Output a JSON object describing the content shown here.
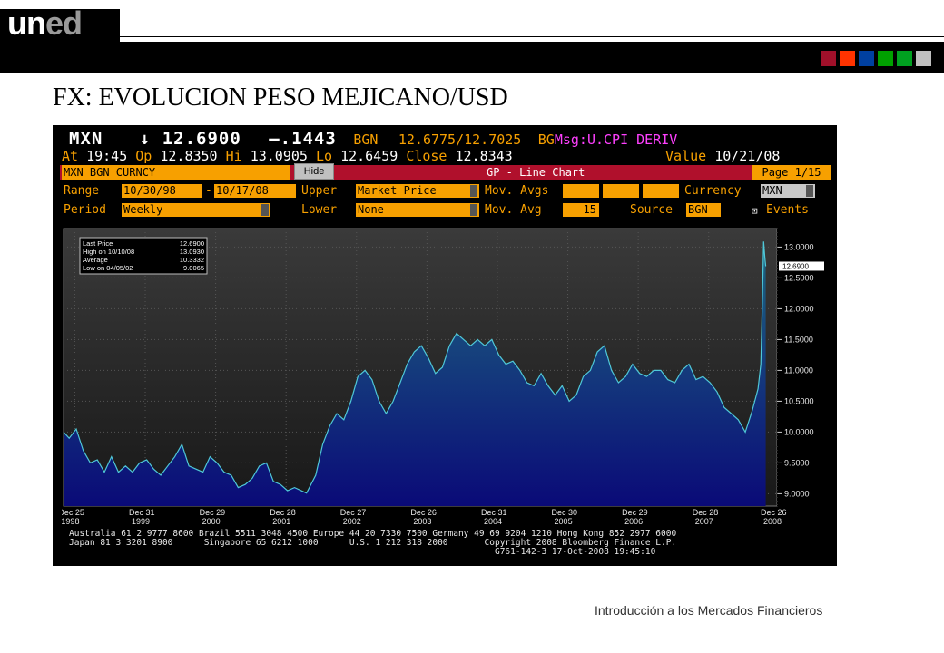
{
  "logo": {
    "part1": "un",
    "part2": "ed"
  },
  "header_squares": [
    "#a0102a",
    "#ff3300",
    "#0040a0",
    "#00a000",
    "#00a020",
    "#c0c0c0"
  ],
  "slide_title": "FX: EVOLUCION PESO MEJICANO/USD",
  "footer_text": "Introducción a los Mercados Financieros",
  "terminal": {
    "ticker": "MXN",
    "arrow": "↓",
    "last": "12.6900",
    "change": "–.1443",
    "source_tag": "BGN",
    "bid_ask": "12.6775/12.7025",
    "source_tag2": "BG",
    "msg": "Msg:U.CPI DERIV",
    "at_label": "At",
    "at_time": "19:45",
    "op_label": "Op",
    "open": "12.8350",
    "hi_label": "Hi",
    "high": "13.0905",
    "lo_label": "Lo",
    "low": "12.6459",
    "close_label": "Close",
    "close": "12.8343",
    "value_label": "Value",
    "value_date": "10/21/08",
    "security": "MXN BGN CURNCY",
    "hide_label": "Hide",
    "chart_title": "GP - Line Chart",
    "page": "Page 1/15",
    "range_label": "Range",
    "range_start": "10/30/98",
    "range_dash": "-",
    "range_end": "10/17/08",
    "upper_label": "Upper",
    "upper_value": "Market Price",
    "movavgs_label": "Mov. Avgs",
    "currency_label": "Currency",
    "currency_value": "MXN",
    "period_label": "Period",
    "period_value": "Weekly",
    "lower_label": "Lower",
    "lower_value": "None",
    "movavg_label": "Mov. Avg",
    "movavg_value": "15",
    "source_label": "Source",
    "source_value": "BGN",
    "events_label": "Events",
    "footer_line1": "Australia 61 2 9777 8600 Brazil 5511 3048 4500 Europe 44 20 7330 7500 Germany 49 69 9204 1210 Hong Kong 852 2977 6000",
    "footer_line2": "Japan 81 3 3201 8900      Singapore 65 6212 1000      U.S. 1 212 318 2000       Copyright 2008 Bloomberg Finance L.P.",
    "footer_line3": "                                                                                  G761-142-3 17-Oct-2008 19:45:10"
  },
  "chart_data": {
    "type": "area",
    "title": "",
    "xlabel": "",
    "ylabel": "",
    "ylim": [
      8.8,
      13.3
    ],
    "yticks": [
      "9.0000",
      "9.5000",
      "10.0000",
      "10.5000",
      "11.0000",
      "11.5000",
      "12.0000",
      "12.5000",
      "13.0000"
    ],
    "last_price_tag": "12.6900",
    "xticks": [
      {
        "top": "Dec 25",
        "bottom": "1998"
      },
      {
        "top": "Dec 31",
        "bottom": "1999"
      },
      {
        "top": "Dec 29",
        "bottom": "2000"
      },
      {
        "top": "Dec 28",
        "bottom": "2001"
      },
      {
        "top": "Dec 27",
        "bottom": "2002"
      },
      {
        "top": "Dec 26",
        "bottom": "2003"
      },
      {
        "top": "Dec 31",
        "bottom": "2004"
      },
      {
        "top": "Dec 30",
        "bottom": "2005"
      },
      {
        "top": "Dec 29",
        "bottom": "2006"
      },
      {
        "top": "Dec 28",
        "bottom": "2007"
      },
      {
        "top": "Dec 26",
        "bottom": "2008"
      }
    ],
    "legend": [
      {
        "label": "Last Price",
        "value": "12.6900"
      },
      {
        "label": "High on 10/10/08",
        "value": "13.0930"
      },
      {
        "label": "Average",
        "value": "10.3332"
      },
      {
        "label": "Low on 04/05/02",
        "value": "9.0065"
      }
    ],
    "legend_position": "top-left",
    "series": [
      {
        "x": [
          1998.82,
          1998.9,
          1999.0,
          1999.1,
          1999.2,
          1999.3,
          1999.4,
          1999.5,
          1999.6,
          1999.7,
          1999.8,
          1999.9,
          2000.0,
          2000.1,
          2000.2,
          2000.3,
          2000.4,
          2000.5,
          2000.6,
          2000.7,
          2000.8,
          2000.9,
          2001.0,
          2001.1,
          2001.2,
          2001.3,
          2001.4,
          2001.5,
          2001.6,
          2001.7,
          2001.8,
          2001.9,
          2002.0,
          2002.1,
          2002.27,
          2002.4,
          2002.5,
          2002.6,
          2002.7,
          2002.8,
          2002.9,
          2003.0,
          2003.1,
          2003.2,
          2003.3,
          2003.4,
          2003.5,
          2003.6,
          2003.7,
          2003.8,
          2003.9,
          2004.0,
          2004.1,
          2004.2,
          2004.3,
          2004.4,
          2004.5,
          2004.6,
          2004.7,
          2004.8,
          2004.9,
          2005.0,
          2005.1,
          2005.2,
          2005.3,
          2005.4,
          2005.5,
          2005.6,
          2005.7,
          2005.8,
          2005.9,
          2006.0,
          2006.1,
          2006.2,
          2006.3,
          2006.4,
          2006.5,
          2006.6,
          2006.7,
          2006.8,
          2006.9,
          2007.0,
          2007.1,
          2007.2,
          2007.3,
          2007.4,
          2007.5,
          2007.6,
          2007.7,
          2007.8,
          2007.9,
          2008.0,
          2008.1,
          2008.2,
          2008.3,
          2008.4,
          2008.5,
          2008.6,
          2008.68,
          2008.72,
          2008.74,
          2008.76,
          2008.78,
          2008.79
        ],
        "y": [
          10.0,
          9.9,
          10.05,
          9.7,
          9.5,
          9.55,
          9.35,
          9.6,
          9.35,
          9.45,
          9.35,
          9.5,
          9.55,
          9.4,
          9.3,
          9.45,
          9.6,
          9.8,
          9.45,
          9.4,
          9.35,
          9.6,
          9.5,
          9.35,
          9.3,
          9.1,
          9.15,
          9.25,
          9.45,
          9.5,
          9.2,
          9.15,
          9.05,
          9.1,
          9.01,
          9.3,
          9.8,
          10.1,
          10.3,
          10.2,
          10.5,
          10.9,
          11.0,
          10.85,
          10.5,
          10.3,
          10.5,
          10.8,
          11.1,
          11.3,
          11.4,
          11.2,
          10.95,
          11.05,
          11.4,
          11.6,
          11.5,
          11.4,
          11.5,
          11.4,
          11.5,
          11.25,
          11.1,
          11.15,
          11.0,
          10.8,
          10.75,
          10.95,
          10.75,
          10.6,
          10.75,
          10.5,
          10.6,
          10.9,
          11.0,
          11.3,
          11.4,
          11.0,
          10.8,
          10.9,
          11.1,
          10.95,
          10.9,
          11.0,
          11.0,
          10.85,
          10.8,
          11.0,
          11.1,
          10.85,
          10.9,
          10.8,
          10.65,
          10.4,
          10.3,
          10.2,
          10.0,
          10.35,
          10.7,
          11.1,
          12.0,
          13.09,
          12.8,
          12.69
        ]
      }
    ],
    "colors": {
      "line": "#4fc8d8",
      "fill_top": "#1e6880",
      "fill_bottom": "#0a0a78",
      "background_top": "#3a3a3a",
      "background_bottom": "#181818"
    }
  }
}
